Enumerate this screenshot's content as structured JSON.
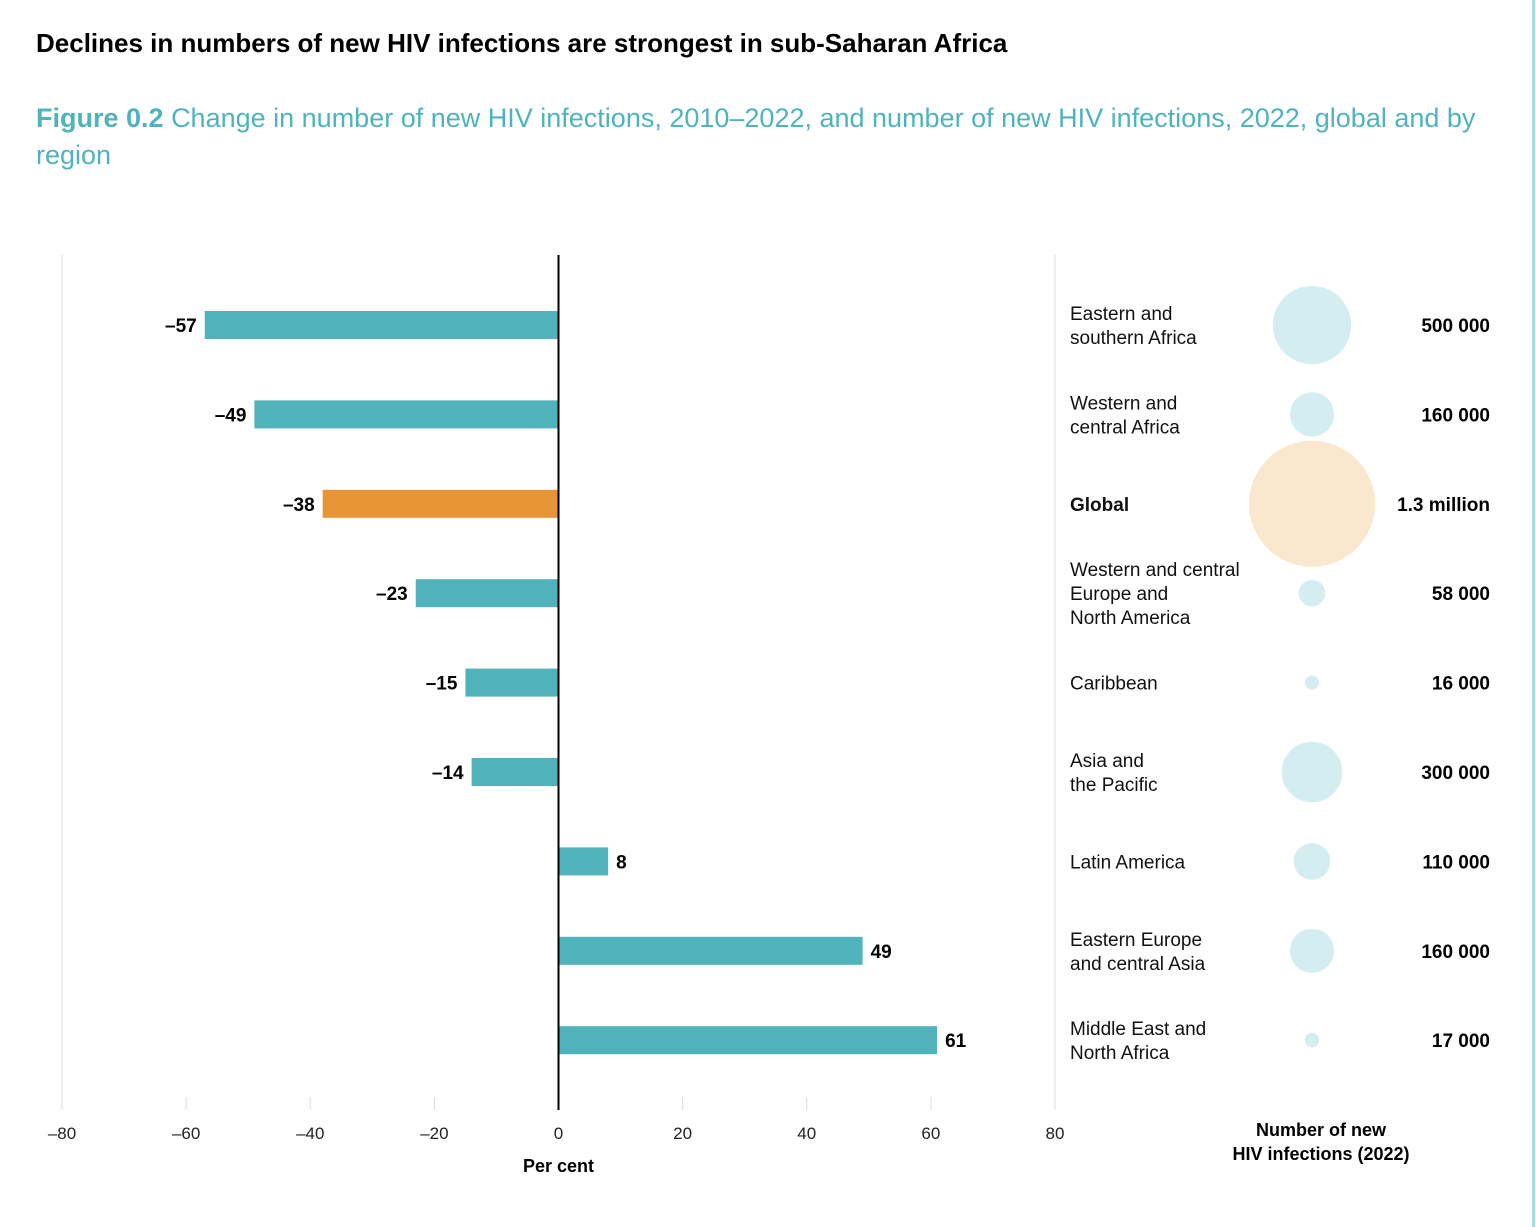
{
  "headline": "Declines in numbers of new HIV infections are strongest in sub-Saharan Africa",
  "figure_label": "Figure 0.2",
  "figure_title": "Change in number of new HIV infections, 2010–2022, and number of new HIV infections, 2022, global and by region",
  "chart_data": {
    "type": "bar",
    "orientation": "horizontal",
    "xlabel": "Per cent",
    "xlim": [
      -80,
      80
    ],
    "xticks": [
      "–80",
      "–60",
      "–40",
      "–20",
      "0",
      "20",
      "40",
      "60",
      "80"
    ],
    "xtick_values": [
      -80,
      -60,
      -40,
      -20,
      0,
      20,
      40,
      60,
      80
    ],
    "categories": [
      "Eastern and southern Africa",
      "Western and central Africa",
      "Global",
      "Western and central Europe and North America",
      "Caribbean",
      "Asia and the Pacific",
      "Latin America",
      "Eastern Europe and central Asia",
      "Middle East and North Africa"
    ],
    "values": [
      -57,
      -49,
      -38,
      -23,
      -15,
      -14,
      8,
      49,
      61
    ],
    "value_labels": [
      "–57",
      "–49",
      "–38",
      "–23",
      "–15",
      "–14",
      "8",
      "49",
      "61"
    ],
    "bubble_title": "Number of new HIV infections (2022)",
    "bubble_values": [
      500000,
      160000,
      1300000,
      58000,
      16000,
      300000,
      110000,
      160000,
      17000
    ],
    "bubble_labels": [
      "500 000",
      "160 000",
      "1.3 million",
      "58 000",
      "16 000",
      "300 000",
      "110 000",
      "160 000",
      "17 000"
    ],
    "label_lines": [
      [
        "Eastern and",
        "southern Africa"
      ],
      [
        "Western and",
        "central Africa"
      ],
      [
        "Global"
      ],
      [
        "Western and central",
        "Europe and",
        "North America"
      ],
      [
        "Caribbean"
      ],
      [
        "Asia and",
        "the Pacific"
      ],
      [
        "Latin America"
      ],
      [
        "Eastern Europe",
        "and central Asia"
      ],
      [
        "Middle East and",
        "North Africa"
      ]
    ],
    "highlight": "Global",
    "colors": {
      "bar": "#50b2ba",
      "bar_highlight": "#e69435",
      "bubble": "#d3edf0",
      "bubble_highlight": "#f9e7ce"
    },
    "grid": false
  }
}
